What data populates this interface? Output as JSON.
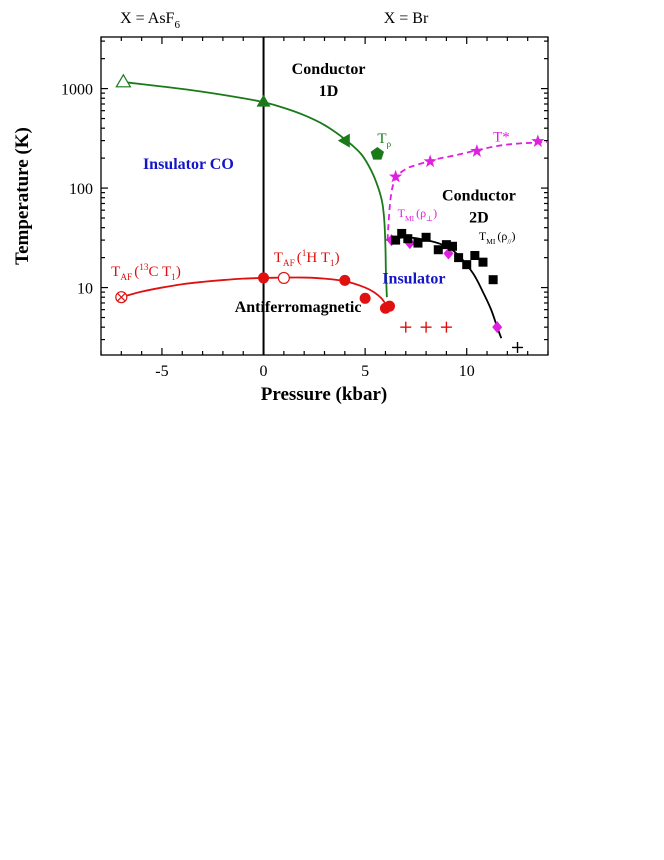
{
  "chart_data": {
    "type": "scatter",
    "xlabel": "Pressure (kbar)",
    "ylabel": "Temperature (K)",
    "xlim": [
      -8,
      14
    ],
    "ylim": [
      2.1,
      3300
    ],
    "yscale": "log",
    "x_ticks": [
      -5,
      0,
      5,
      10
    ],
    "x_tick_labels": [
      "-5",
      "0",
      "5",
      "10"
    ],
    "y_ticks": [
      10,
      100,
      1000
    ],
    "y_tick_labels": [
      "10",
      "100",
      "1000"
    ],
    "divider_x": 0,
    "top_labels": {
      "left": {
        "base": "X = AsF",
        "sub": "6"
      },
      "right": "X = Br"
    },
    "phase_labels": [
      {
        "text": "Conductor",
        "x": 3.2,
        "y": 1400,
        "color": "#000000"
      },
      {
        "text": "1D",
        "x": 3.2,
        "y": 840,
        "color": "#000000"
      },
      {
        "text": "Insulator CO",
        "x": -3.7,
        "y": 155,
        "color": "#1414c8"
      },
      {
        "text": "Conductor",
        "x": 10.6,
        "y": 75,
        "color": "#000000"
      },
      {
        "text": "2D",
        "x": 10.6,
        "y": 45,
        "color": "#000000"
      },
      {
        "text": "Insulator",
        "x": 7.4,
        "y": 11,
        "color": "#1414c8"
      },
      {
        "text": "Antiferromagnetic",
        "x": 1.7,
        "y": 5.7,
        "color": "#000000"
      }
    ],
    "curve_labels": [
      {
        "id": "t_rho",
        "base": "T",
        "sub": "ρ",
        "x": 5.6,
        "y": 285,
        "color": "#1a7a1a"
      },
      {
        "id": "t_star",
        "base": "T*",
        "x": 11.3,
        "y": 295,
        "color": "#e020e0"
      },
      {
        "id": "t_mi_perp",
        "base": "T",
        "sub": "MI",
        "paren": "(ρ",
        "sub2": "⊥",
        "close": ")",
        "x": 6.6,
        "y": 51,
        "color": "#e020e0"
      },
      {
        "id": "t_mi_par",
        "base": "T",
        "sub": "MI",
        "paren": "(ρ",
        "sub2": "//",
        "close": ")",
        "x": 10.6,
        "y": 30,
        "color": "#000000"
      },
      {
        "id": "t_af_13c",
        "base": "T",
        "sub": "AF",
        "paren": "(",
        "sup": "13",
        "rest": "C T",
        "sub2": "1",
        "close": ")",
        "x": -7.5,
        "y": 13,
        "color": "#e01010"
      },
      {
        "id": "t_af_1h",
        "base": "T",
        "sub": "AF",
        "paren": "(",
        "sup": "1",
        "rest": "H T",
        "sub2": "1",
        "close": ")",
        "x": 0.5,
        "y": 18,
        "color": "#e01010"
      }
    ],
    "series": [
      {
        "id": "t_rho_curve",
        "kind": "line",
        "color": "#1a7a1a",
        "dashed": false,
        "x": [
          -7,
          -5,
          -3,
          -1,
          0,
          1,
          2,
          3,
          4,
          4.8,
          5.3,
          5.65,
          5.85,
          5.95,
          6.0,
          6.02,
          6.05,
          6.07
        ],
        "y": [
          1170,
          1050,
          930,
          800,
          730,
          640,
          540,
          430,
          310,
          220,
          150,
          100,
          70,
          45,
          25,
          15,
          10,
          8
        ]
      },
      {
        "id": "t_star_curve",
        "kind": "line",
        "color": "#e020e0",
        "dashed": true,
        "x": [
          6.1,
          6.25,
          6.5,
          7.0,
          7.5,
          8.5,
          9.5,
          10.5,
          11.5,
          12.5,
          14
        ],
        "y": [
          30,
          78,
          125,
          155,
          170,
          195,
          215,
          240,
          265,
          280,
          290
        ]
      },
      {
        "id": "t_mi_curve",
        "kind": "line",
        "color": "#000000",
        "dashed": false,
        "x": [
          6.05,
          7,
          8,
          8.8,
          9.5,
          10.3,
          10.8,
          11.2,
          11.5,
          11.7
        ],
        "y": [
          30,
          32,
          30,
          27,
          22,
          14,
          9,
          6,
          4,
          3.1
        ]
      },
      {
        "id": "t_af_curve",
        "kind": "line",
        "color": "#e01010",
        "dashed": false,
        "x": [
          -7,
          -6,
          -5,
          -4,
          -3,
          -2,
          -1,
          0,
          1,
          2,
          3,
          4,
          5,
          5.5,
          5.8,
          6.0,
          6.15
        ],
        "y": [
          8,
          9.1,
          10.0,
          10.8,
          11.4,
          11.9,
          12.3,
          12.5,
          12.6,
          12.6,
          12.3,
          11.6,
          10.0,
          8.8,
          7.8,
          6.9,
          6.3
        ]
      },
      {
        "id": "green_triangle_open",
        "kind": "markers",
        "marker": "triangle-up-open",
        "color": "#1a7a1a",
        "x": [
          -6.9
        ],
        "y": [
          1170
        ]
      },
      {
        "id": "green_triangle_filled",
        "kind": "markers",
        "marker": "triangle-up",
        "color": "#1a7a1a",
        "x": [
          0
        ],
        "y": [
          740
        ]
      },
      {
        "id": "green_triangle_left",
        "kind": "markers",
        "marker": "triangle-left",
        "color": "#1a7a1a",
        "x": [
          4
        ],
        "y": [
          300
        ]
      },
      {
        "id": "green_pentagon",
        "kind": "markers",
        "marker": "pentagon",
        "color": "#1a7a1a",
        "x": [
          5.6
        ],
        "y": [
          220
        ]
      },
      {
        "id": "t_star_points",
        "kind": "markers",
        "marker": "star",
        "color": "#e020e0",
        "x": [
          6.5,
          8.2,
          10.5,
          13.5
        ],
        "y": [
          130,
          185,
          235,
          295
        ]
      },
      {
        "id": "t_mi_perp_points",
        "kind": "markers",
        "marker": "diamond",
        "color": "#e020e0",
        "x": [
          6.3,
          7.2,
          9.1,
          11.5
        ],
        "y": [
          30,
          28,
          22,
          4
        ]
      },
      {
        "id": "t_mi_par_points",
        "kind": "markers",
        "marker": "square",
        "color": "#000000",
        "x": [
          6.5,
          6.8,
          7.1,
          7.6,
          8.0,
          8.6,
          9.0,
          9.3,
          9.6,
          10.0,
          10.4,
          10.8,
          11.3
        ],
        "y": [
          30,
          35,
          31,
          28,
          32,
          24,
          27,
          26,
          20,
          17,
          21,
          18,
          12
        ]
      },
      {
        "id": "t_af_13c_points",
        "kind": "markers",
        "marker": "circle-x",
        "color": "#e01010",
        "x": [
          -7
        ],
        "y": [
          8
        ]
      },
      {
        "id": "t_af_1h_open",
        "kind": "markers",
        "marker": "circle-open",
        "color": "#e01010",
        "x": [
          1
        ],
        "y": [
          12.5
        ]
      },
      {
        "id": "t_af_1h_filled",
        "kind": "markers",
        "marker": "circle",
        "color": "#e01010",
        "x": [
          0,
          4,
          5,
          6,
          6.2
        ],
        "y": [
          12.5,
          11.8,
          7.8,
          6.2,
          6.5
        ]
      },
      {
        "id": "red_crosses",
        "kind": "markers",
        "marker": "plus",
        "color": "#e01010",
        "x": [
          7,
          8,
          9
        ],
        "y": [
          4,
          4,
          4
        ]
      },
      {
        "id": "black_cross",
        "kind": "markers",
        "marker": "plus",
        "color": "#000000",
        "x": [
          12.5
        ],
        "y": [
          2.5
        ]
      }
    ]
  }
}
